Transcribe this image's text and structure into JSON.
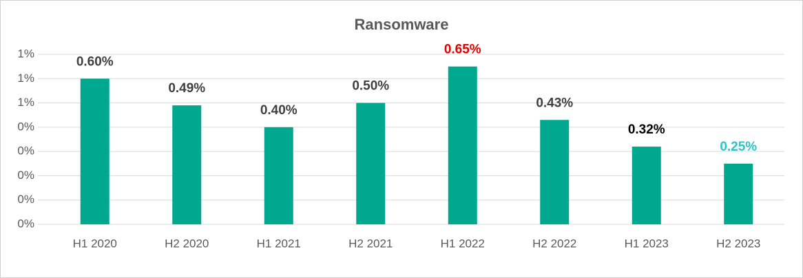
{
  "chart_data": {
    "type": "bar",
    "title": "Ransomware",
    "categories": [
      "H1 2020",
      "H2 2020",
      "H1 2021",
      "H2 2021",
      "H1 2022",
      "H2 2022",
      "H1 2023",
      "H2 2023"
    ],
    "values": [
      0.6,
      0.49,
      0.4,
      0.5,
      0.65,
      0.43,
      0.32,
      0.25
    ],
    "value_labels": [
      "0.60%",
      "0.49%",
      "0.40%",
      "0.50%",
      "0.65%",
      "0.43%",
      "0.32%",
      "0.25%"
    ],
    "value_label_colors": [
      "#404040",
      "#404040",
      "#404040",
      "#404040",
      "#e00000",
      "#404040",
      "#000000",
      "#2ec4c4"
    ],
    "color": "#00a88f",
    "ylim": [
      0,
      0.7
    ],
    "yticks": [
      {
        "value": 0,
        "label": "0%"
      },
      {
        "value": 0.1,
        "label": "0%"
      },
      {
        "value": 0.2,
        "label": "0%"
      },
      {
        "value": 0.3,
        "label": "0%"
      },
      {
        "value": 0.4,
        "label": "0%"
      },
      {
        "value": 0.5,
        "label": "1%"
      },
      {
        "value": 0.6,
        "label": "1%"
      },
      {
        "value": 0.7,
        "label": "1%"
      }
    ],
    "grid": true
  }
}
